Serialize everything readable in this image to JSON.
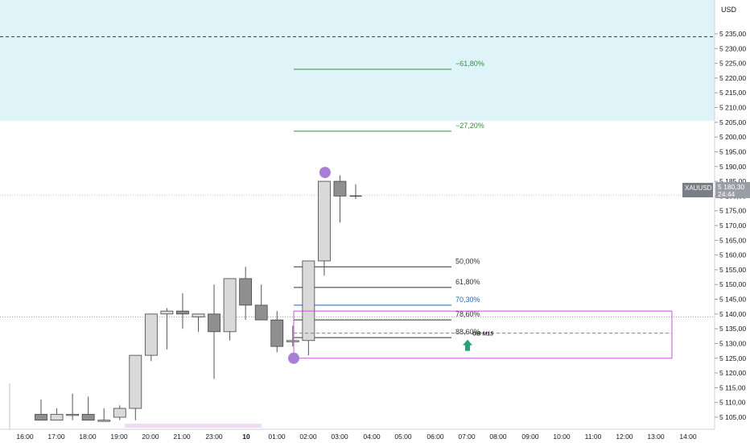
{
  "chart_data": {
    "type": "candlestick",
    "symbol": "XAUUSD",
    "currency": "USD",
    "last_price": "5 180,30",
    "countdown": "24:44",
    "x_tick_labels": [
      "16:00",
      "17:00",
      "18:00",
      "19:00",
      "20:00",
      "21:00",
      "23:00",
      "10",
      "01:00",
      "02:00",
      "03:00",
      "04:00",
      "05:00",
      "06:00",
      "07:00",
      "08:00",
      "09:00",
      "10:00",
      "11:00",
      "12:00",
      "13:00",
      "14:00"
    ],
    "y_tick_labels": [
      "5 105,00",
      "5 110,00",
      "5 115,00",
      "5 120,00",
      "5 125,00",
      "5 130,00",
      "5 135,00",
      "5 140,00",
      "5 145,00",
      "5 150,00",
      "5 155,00",
      "5 160,00",
      "5 165,00",
      "5 170,00",
      "5 175,00",
      "5 180,00",
      "5 185,00",
      "5 190,00",
      "5 195,00",
      "5 200,00",
      "5 205,00",
      "5 210,00",
      "5 215,00",
      "5 220,00",
      "5 225,00",
      "5 230,00",
      "5 235,00"
    ],
    "ylim": [
      5101,
      5238
    ],
    "candles": [
      {
        "o": 5106,
        "h": 5111,
        "l": 5104,
        "c": 5104
      },
      {
        "o": 5104,
        "h": 5108,
        "l": 5104,
        "c": 5106
      },
      {
        "o": 5106,
        "h": 5113,
        "l": 5104,
        "c": 5106
      },
      {
        "o": 5106,
        "h": 5112,
        "l": 5104,
        "c": 5104
      },
      {
        "o": 5104,
        "h": 5108,
        "l": 5104,
        "c": 5104
      },
      {
        "o": 5105,
        "h": 5109,
        "l": 5104,
        "c": 5108
      },
      {
        "o": 5108,
        "h": 5126,
        "l": 5104,
        "c": 5126
      },
      {
        "o": 5126,
        "h": 5140,
        "l": 5124,
        "c": 5140
      },
      {
        "o": 5140,
        "h": 5142,
        "l": 5128,
        "c": 5141
      },
      {
        "o": 5141,
        "h": 5147,
        "l": 5135,
        "c": 5140
      },
      {
        "o": 5139,
        "h": 5140,
        "l": 5134,
        "c": 5140
      },
      {
        "o": 5140,
        "h": 5150,
        "l": 5118,
        "c": 5134
      },
      {
        "o": 5134,
        "h": 5152,
        "l": 5131,
        "c": 5152
      },
      {
        "o": 5152,
        "h": 5156,
        "l": 5138,
        "c": 5143
      },
      {
        "o": 5143,
        "h": 5150,
        "l": 5138,
        "c": 5138
      },
      {
        "o": 5138,
        "h": 5141,
        "l": 5127,
        "c": 5129
      },
      {
        "o": 5131,
        "h": 5136,
        "l": 5129,
        "c": 5131
      },
      {
        "o": 5131,
        "h": 5158,
        "l": 5126,
        "c": 5158
      },
      {
        "o": 5158,
        "h": 5185,
        "l": 5153,
        "c": 5185
      },
      {
        "o": 5185,
        "h": 5187,
        "l": 5171,
        "c": 5180
      },
      {
        "o": 5180,
        "h": 5184,
        "l": 5179,
        "c": 5180
      }
    ],
    "fib_levels": [
      {
        "label": "−61,80%",
        "price": 5223,
        "color": "#388e3c"
      },
      {
        "label": "−27,20%",
        "price": 5202,
        "color": "#388e3c"
      },
      {
        "label": "50,00%",
        "price": 5156,
        "color": "#333333"
      },
      {
        "label": "61,80%",
        "price": 5149,
        "color": "#333333"
      },
      {
        "label": "70,30%",
        "price": 5143,
        "color": "#1e63c4"
      },
      {
        "label": "78,60%",
        "price": 5138,
        "color": "#333333"
      },
      {
        "label": "88,60%",
        "price": 5132,
        "color": "#333333"
      }
    ],
    "zone_top": {
      "from": 5205.5,
      "to": 5238,
      "color": "#def4f9"
    },
    "ob_zone": {
      "label": "OB M15",
      "top": 5141,
      "bottom": 5125,
      "mid": 5133.5,
      "color": "#c05bd0"
    },
    "dashed_level_price": 5234,
    "dotted_level_price": 5139,
    "markers": [
      {
        "name": "swing-high-marker",
        "price": 5188,
        "color": "#a97fd6"
      },
      {
        "name": "swing-low-marker",
        "price": 5125,
        "color": "#a97fd6"
      }
    ],
    "arrow_color": "#26a17b"
  }
}
